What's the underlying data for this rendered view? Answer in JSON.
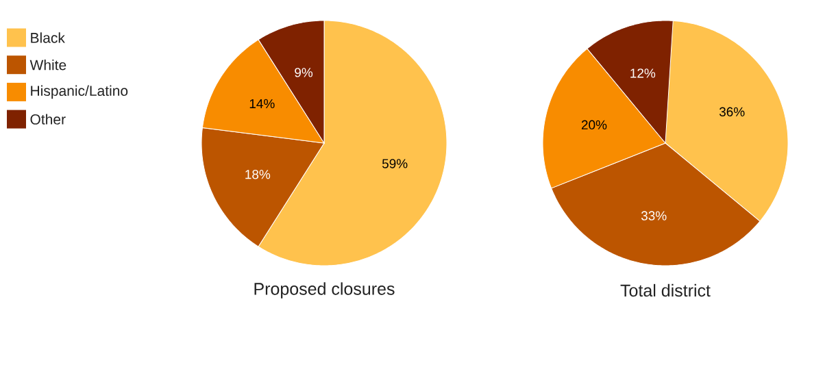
{
  "chart_data": [
    {
      "type": "pie",
      "title": "Proposed closures",
      "categories": [
        "Black",
        "White",
        "Hispanic/Latino",
        "Other"
      ],
      "values": [
        59,
        18,
        14,
        9
      ],
      "value_labels": [
        "59%",
        "18%",
        "14%",
        "9%"
      ],
      "colors": [
        "#ffc24d",
        "#bc5500",
        "#f88c00",
        "#7f2200"
      ],
      "data_labels": true,
      "legend": "left"
    },
    {
      "type": "pie",
      "title": "Total district",
      "categories": [
        null,
        null,
        null,
        null
      ],
      "values": [
        36,
        33,
        20,
        12
      ],
      "value_labels": [
        "36%",
        "33%",
        "20%",
        "12%"
      ],
      "colors": [
        "#ffc24d",
        "#bc5500",
        "#f88c00",
        "#7f2200"
      ],
      "data_labels": true,
      "legend": false
    }
  ]
}
